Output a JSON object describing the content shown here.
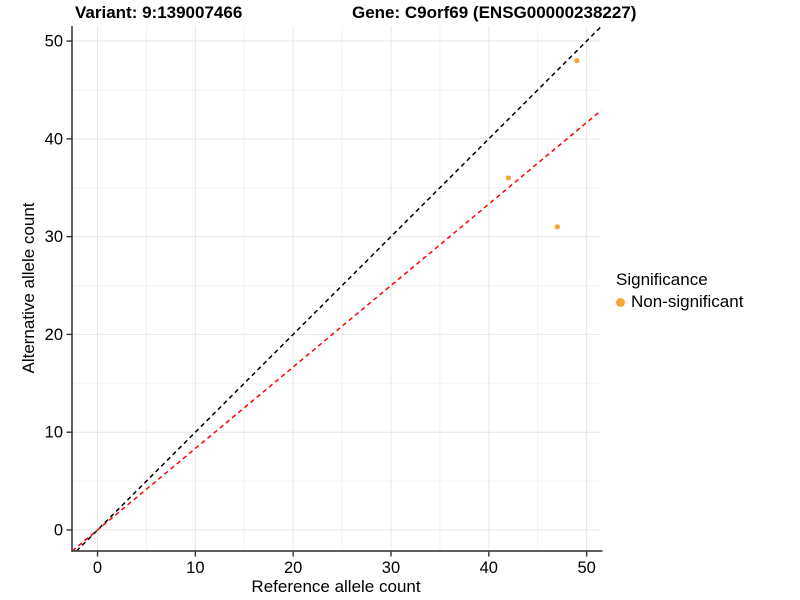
{
  "header": {
    "variant_title": "Variant: 9:139007466",
    "gene_title": "Gene: C9orf69 (ENSG00000238227)"
  },
  "legend": {
    "title": "Significance",
    "items": [
      {
        "label": "Non-significant",
        "color": "#F9A437"
      }
    ]
  },
  "colors": {
    "grid_major": "#E7E7E7",
    "grid_minor": "#F2F2F2",
    "axis_line": "#474747",
    "tick_mark": "#333333",
    "axis_text": "#000000",
    "identity_line": "#000000",
    "ratio_line": "#FF0000",
    "point": "#F9A437"
  },
  "chart_data": {
    "type": "scatter",
    "title_left": "Variant: 9:139007466",
    "title_right": "Gene: C9orf69 (ENSG00000238227)",
    "xlabel": "Reference allele count",
    "ylabel": "Alternative allele count",
    "xlim": [
      -2.61,
      51.47
    ],
    "ylim": [
      -2.15,
      51.54
    ],
    "xticks": [
      0,
      10,
      20,
      30,
      40,
      50
    ],
    "yticks": [
      0,
      10,
      20,
      30,
      40,
      50
    ],
    "minor_xticks": [
      5,
      15,
      25,
      35,
      45
    ],
    "minor_yticks": [
      5,
      15,
      25,
      35,
      45
    ],
    "grid": true,
    "legend_position": "right",
    "points": [
      {
        "x": 42,
        "y": 36,
        "series": "Non-significant"
      },
      {
        "x": 47,
        "y": 31,
        "series": "Non-significant"
      },
      {
        "x": 49,
        "y": 48,
        "series": "Non-significant"
      }
    ],
    "lines": [
      {
        "name": "identity-line",
        "slope": 1,
        "intercept": 0,
        "color": "#000000",
        "style": "dashed"
      },
      {
        "name": "allelic-ratio-line",
        "slope": 0.8333,
        "intercept": 0,
        "color": "#FF0000",
        "style": "dashed"
      }
    ]
  }
}
